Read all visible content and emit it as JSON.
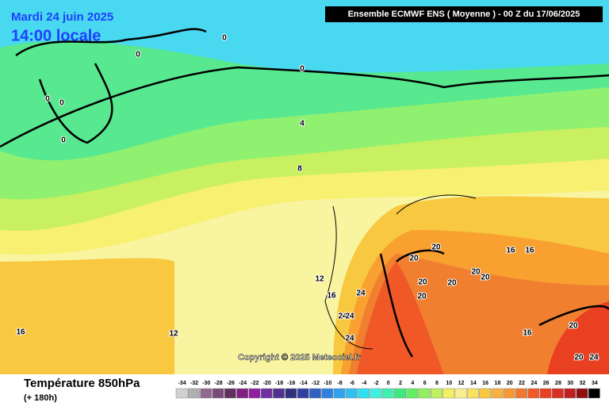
{
  "header": {
    "date": "Mardi 24 juin 2025",
    "time": "14:00 locale",
    "model": "Ensemble ECMWF ENS  ( Moyenne )  -  00 Z du 17/06/2025"
  },
  "copyright": "Copyright © 2025 Meteociel.fr",
  "footer": {
    "title": "Température 850hPa",
    "lead": "(+ 180h)"
  },
  "scale": {
    "ticks": [
      -34,
      -32,
      -30,
      -28,
      -26,
      -24,
      -22,
      -20,
      -18,
      -16,
      -14,
      -12,
      -10,
      -8,
      -6,
      -4,
      -2,
      0,
      2,
      4,
      6,
      8,
      10,
      12,
      14,
      16,
      18,
      20,
      22,
      24,
      26,
      28,
      30,
      32,
      34
    ],
    "colors": [
      "#d0d0d0",
      "#b0b0b0",
      "#906890",
      "#7a4a7a",
      "#603060",
      "#802080",
      "#9020a0",
      "#7030a0",
      "#503090",
      "#303080",
      "#3040a0",
      "#3060c0",
      "#3080e0",
      "#30a0f0",
      "#30c0f0",
      "#30e0f0",
      "#40f0e0",
      "#40f0b0",
      "#40e880",
      "#60f060",
      "#90f060",
      "#c0f060",
      "#f0f060",
      "#f8f090",
      "#f8e060",
      "#f8c840",
      "#f8b040",
      "#f89830",
      "#f07830",
      "#f05828",
      "#e84020",
      "#d83020",
      "#c02020",
      "#901010",
      "#000000"
    ]
  },
  "contour_labels": [
    0,
    0,
    0,
    0,
    0,
    0,
    4,
    8,
    12,
    12,
    16,
    16,
    16,
    16,
    16,
    20,
    20,
    20,
    20,
    20,
    20,
    20,
    20,
    20,
    24,
    24,
    24,
    24,
    24
  ]
}
